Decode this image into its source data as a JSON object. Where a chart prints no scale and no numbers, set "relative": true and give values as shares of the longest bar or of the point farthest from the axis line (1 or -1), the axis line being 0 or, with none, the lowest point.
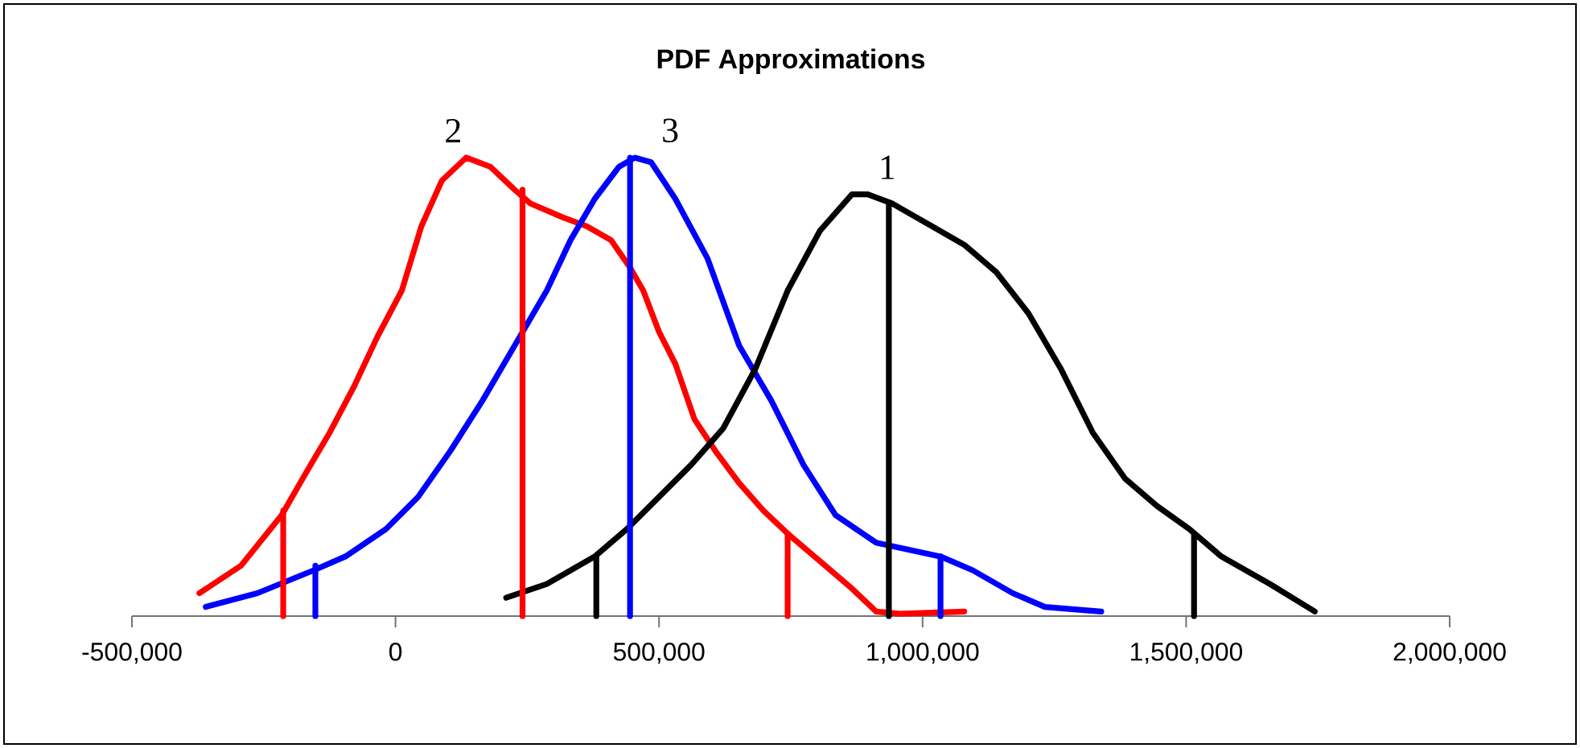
{
  "chart_data": {
    "type": "line",
    "title": "PDF Approximations",
    "relative": true,
    "xlim": [
      -500000,
      2000000
    ],
    "xticks": [
      {
        "value": -500000,
        "label": "-500,000"
      },
      {
        "value": 0,
        "label": "0"
      },
      {
        "value": 500000,
        "label": "500,000"
      },
      {
        "value": 1000000,
        "label": "1,000,000"
      },
      {
        "value": 1500000,
        "label": "1,500,000"
      },
      {
        "value": 2000000,
        "label": "2,000,000"
      }
    ],
    "series": [
      {
        "name": "2",
        "color": "#ff0000",
        "x": [
          -372000,
          -293000,
          -216000,
          -171000,
          -125000,
          -79000,
          -34000,
          12000,
          49000,
          88000,
          134000,
          180000,
          226000,
          256000,
          317000,
          363000,
          409000,
          445000,
          470000,
          500000,
          531000,
          567000,
          607000,
          652000,
          698000,
          744000,
          805000,
          866000,
          912000,
          957000,
          1079000
        ],
        "values": [
          0.05,
          0.11,
          0.22,
          0.31,
          0.4,
          0.5,
          0.61,
          0.71,
          0.85,
          0.95,
          1.0,
          0.98,
          0.93,
          0.9,
          0.87,
          0.85,
          0.82,
          0.76,
          0.71,
          0.62,
          0.55,
          0.43,
          0.36,
          0.29,
          0.23,
          0.18,
          0.12,
          0.06,
          0.01,
          0.005,
          0.01
        ]
      },
      {
        "name": "3",
        "color": "#0000ff",
        "x": [
          -360000,
          -262000,
          -155000,
          -95000,
          -18000,
          43000,
          104000,
          165000,
          226000,
          287000,
          332000,
          378000,
          424000,
          454000,
          485000,
          531000,
          592000,
          652000,
          713000,
          774000,
          835000,
          912000,
          1034000,
          1095000,
          1171000,
          1232000,
          1339000
        ],
        "values": [
          0.02,
          0.05,
          0.1,
          0.13,
          0.19,
          0.26,
          0.36,
          0.47,
          0.59,
          0.71,
          0.82,
          0.91,
          0.98,
          1.0,
          0.99,
          0.91,
          0.78,
          0.59,
          0.47,
          0.33,
          0.22,
          0.16,
          0.13,
          0.1,
          0.05,
          0.02,
          0.01
        ]
      },
      {
        "name": "1",
        "color": "#000000",
        "x": [
          210000,
          287000,
          378000,
          439000,
          500000,
          561000,
          622000,
          683000,
          744000,
          805000,
          866000,
          896000,
          942000,
          1018000,
          1079000,
          1140000,
          1201000,
          1262000,
          1323000,
          1384000,
          1445000,
          1506000,
          1567000,
          1659000,
          1744000
        ],
        "values": [
          0.04,
          0.07,
          0.13,
          0.19,
          0.26,
          0.33,
          0.41,
          0.54,
          0.71,
          0.84,
          0.92,
          0.92,
          0.9,
          0.85,
          0.81,
          0.75,
          0.66,
          0.54,
          0.4,
          0.3,
          0.24,
          0.19,
          0.13,
          0.07,
          0.01
        ]
      },
      {
        "color": "#ff0000",
        "x": [
          -213000,
          -213000
        ],
        "values": [
          0,
          0.23
        ]
      },
      {
        "color": "#ff0000",
        "x": [
          241000,
          241000
        ],
        "values": [
          0,
          0.93
        ]
      },
      {
        "color": "#ff0000",
        "x": [
          744000,
          744000
        ],
        "values": [
          0,
          0.18
        ]
      },
      {
        "color": "#0000ff",
        "x": [
          -152000,
          -152000
        ],
        "values": [
          0,
          0.11
        ]
      },
      {
        "color": "#0000ff",
        "x": [
          445000,
          445000
        ],
        "values": [
          0,
          1.0
        ]
      },
      {
        "color": "#0000ff",
        "x": [
          1034000,
          1034000
        ],
        "values": [
          0,
          0.13
        ]
      },
      {
        "color": "#000000",
        "x": [
          381000,
          381000
        ],
        "values": [
          0,
          0.13
        ]
      },
      {
        "color": "#000000",
        "x": [
          936000,
          936000
        ],
        "values": [
          0,
          0.9
        ]
      },
      {
        "color": "#000000",
        "x": [
          1515000,
          1515000
        ],
        "values": [
          0,
          0.18
        ]
      }
    ]
  }
}
